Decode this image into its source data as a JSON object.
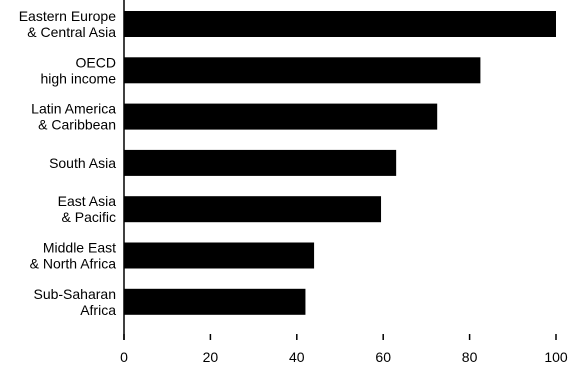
{
  "chart_data": {
    "type": "bar",
    "orientation": "horizontal",
    "title": "",
    "xlabel": "",
    "ylabel": "",
    "categories": [
      [
        "Eastern Europe",
        "& Central Asia"
      ],
      [
        "OECD",
        "high income"
      ],
      [
        "Latin America",
        "& Caribbean"
      ],
      [
        "South Asia"
      ],
      [
        "East Asia",
        "& Pacific"
      ],
      [
        "Middle East",
        "& North Africa"
      ],
      [
        "Sub-Saharan",
        "Africa"
      ]
    ],
    "values": [
      100,
      82.5,
      72.5,
      63,
      59.5,
      44,
      42
    ],
    "xlim": [
      0,
      100
    ],
    "xticks": [
      "0",
      "20",
      "40",
      "60",
      "80",
      "100"
    ],
    "grid": false,
    "bar_color": "#000000"
  }
}
